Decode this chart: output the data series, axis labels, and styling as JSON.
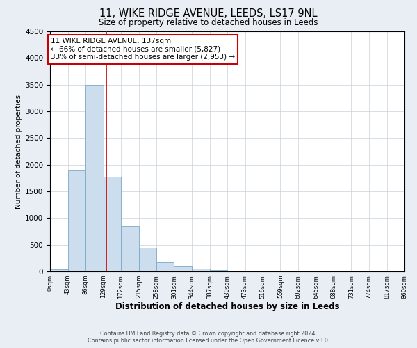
{
  "title": "11, WIKE RIDGE AVENUE, LEEDS, LS17 9NL",
  "subtitle": "Size of property relative to detached houses in Leeds",
  "xlabel": "Distribution of detached houses by size in Leeds",
  "ylabel": "Number of detached properties",
  "bin_edges": [
    0,
    43,
    86,
    129,
    172,
    215,
    258,
    301,
    344,
    387,
    430,
    473,
    516,
    559,
    602,
    645,
    688,
    731,
    774,
    817,
    860
  ],
  "bar_heights": [
    45,
    1900,
    3500,
    1775,
    850,
    450,
    175,
    100,
    55,
    30,
    0,
    0,
    0,
    0,
    0,
    0,
    0,
    0,
    0,
    0
  ],
  "bar_color": "#ccdded",
  "bar_edgecolor": "#7aaac8",
  "property_line_x": 137,
  "property_line_color": "#cc0000",
  "annotation_line1": "11 WIKE RIDGE AVENUE: 137sqm",
  "annotation_line2": "← 66% of detached houses are smaller (5,827)",
  "annotation_line3": "33% of semi-detached houses are larger (2,953) →",
  "annotation_box_color": "#ffffff",
  "annotation_box_edgecolor": "#cc0000",
  "ylim": [
    0,
    4500
  ],
  "yticks": [
    0,
    500,
    1000,
    1500,
    2000,
    2500,
    3000,
    3500,
    4000,
    4500
  ],
  "tick_labels": [
    "0sqm",
    "43sqm",
    "86sqm",
    "129sqm",
    "172sqm",
    "215sqm",
    "258sqm",
    "301sqm",
    "344sqm",
    "387sqm",
    "430sqm",
    "473sqm",
    "516sqm",
    "559sqm",
    "602sqm",
    "645sqm",
    "688sqm",
    "731sqm",
    "774sqm",
    "817sqm",
    "860sqm"
  ],
  "footer_line1": "Contains HM Land Registry data © Crown copyright and database right 2024.",
  "footer_line2": "Contains public sector information licensed under the Open Government Licence v3.0.",
  "fig_facecolor": "#e8eef4",
  "plot_facecolor": "#ffffff",
  "grid_color": "#c8d0d8",
  "title_fontsize": 10.5,
  "subtitle_fontsize": 8.5,
  "xlabel_fontsize": 8.5,
  "ylabel_fontsize": 7.5,
  "xtick_fontsize": 6,
  "ytick_fontsize": 7.5,
  "annotation_fontsize": 7.5,
  "footer_fontsize": 5.8,
  "footer_color": "#444444"
}
